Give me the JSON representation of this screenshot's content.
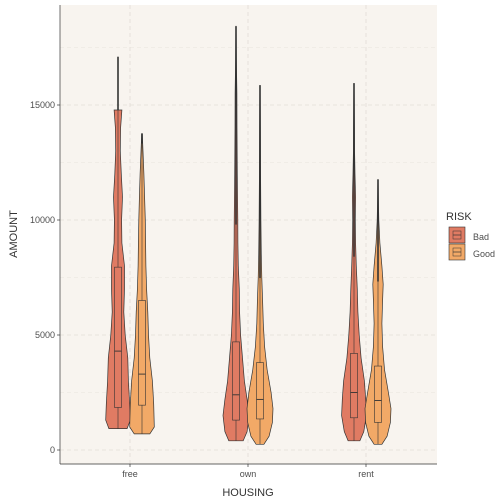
{
  "chart_data": {
    "type": "violin",
    "title": "",
    "xlabel": "HOUSING",
    "ylabel": "AMOUNT",
    "categories": [
      "free",
      "own",
      "rent"
    ],
    "ylim": [
      -500,
      19000
    ],
    "yticks": [
      0,
      5000,
      10000,
      15000
    ],
    "ytick_labels": [
      "0",
      "5000",
      "10000",
      "15000"
    ],
    "grid": true,
    "legend": {
      "title": "RISK",
      "position": "right",
      "entries": [
        "Bad",
        "Good"
      ]
    },
    "colors": {
      "Bad": "#e07b63",
      "Good": "#f2a967",
      "panel": "#f8f4ef",
      "grid": "#e2ddd6",
      "outline": "#333333"
    },
    "series": [
      {
        "name": "Bad",
        "groups": [
          {
            "category": "free",
            "min": 932,
            "max": 14782,
            "q1": 1850,
            "median": 4300,
            "q3": 7950,
            "profile": [
              [
                932,
                0.7
              ],
              [
                1300,
                0.95
              ],
              [
                2000,
                0.9
              ],
              [
                3000,
                0.8
              ],
              [
                4000,
                0.75
              ],
              [
                5000,
                0.55
              ],
              [
                6000,
                0.45
              ],
              [
                7000,
                0.5
              ],
              [
                8000,
                0.5
              ],
              [
                9000,
                0.3
              ],
              [
                10000,
                0.28
              ],
              [
                11000,
                0.35
              ],
              [
                12000,
                0.25
              ],
              [
                13000,
                0.18
              ],
              [
                14000,
                0.2
              ],
              [
                14782,
                0.3
              ]
            ]
          },
          {
            "category": "own",
            "min": 400,
            "max": 18424,
            "q1": 1300,
            "median": 2400,
            "q3": 4700,
            "profile": [
              [
                400,
                0.55
              ],
              [
                800,
                0.85
              ],
              [
                1500,
                1.0
              ],
              [
                2200,
                0.85
              ],
              [
                3000,
                0.65
              ],
              [
                4000,
                0.5
              ],
              [
                5000,
                0.35
              ],
              [
                6000,
                0.28
              ],
              [
                7000,
                0.25
              ],
              [
                8000,
                0.18
              ],
              [
                9000,
                0.15
              ],
              [
                10000,
                0.14
              ],
              [
                12000,
                0.1
              ],
              [
                14000,
                0.08
              ],
              [
                15500,
                0.07
              ],
              [
                17000,
                0.03
              ],
              [
                18424,
                0.01
              ]
            ]
          },
          {
            "category": "rent",
            "min": 400,
            "max": 15945,
            "q1": 1400,
            "median": 2500,
            "q3": 4200,
            "profile": [
              [
                400,
                0.45
              ],
              [
                800,
                0.75
              ],
              [
                1500,
                0.95
              ],
              [
                2200,
                0.9
              ],
              [
                3000,
                0.8
              ],
              [
                4000,
                0.55
              ],
              [
                5000,
                0.4
              ],
              [
                6000,
                0.3
              ],
              [
                7000,
                0.25
              ],
              [
                8000,
                0.18
              ],
              [
                9000,
                0.12
              ],
              [
                10000,
                0.1
              ],
              [
                11000,
                0.12
              ],
              [
                12000,
                0.08
              ],
              [
                13000,
                0.05
              ],
              [
                14000,
                0.04
              ],
              [
                15945,
                0.01
              ]
            ]
          }
        ]
      },
      {
        "name": "Good",
        "groups": [
          {
            "category": "free",
            "min": 700,
            "max": 13756,
            "q1": 1950,
            "median": 3300,
            "q3": 6500,
            "profile": [
              [
                700,
                0.6
              ],
              [
                1000,
                0.95
              ],
              [
                2000,
                0.9
              ],
              [
                3000,
                0.8
              ],
              [
                4000,
                0.6
              ],
              [
                5000,
                0.5
              ],
              [
                6000,
                0.45
              ],
              [
                7000,
                0.35
              ],
              [
                8000,
                0.3
              ],
              [
                9000,
                0.28
              ],
              [
                10000,
                0.25
              ],
              [
                11000,
                0.2
              ],
              [
                12000,
                0.15
              ],
              [
                13000,
                0.08
              ],
              [
                13756,
                0.02
              ]
            ]
          },
          {
            "category": "own",
            "min": 250,
            "max": 15857,
            "q1": 1350,
            "median": 2200,
            "q3": 3800,
            "profile": [
              [
                250,
                0.3
              ],
              [
                600,
                0.7
              ],
              [
                1200,
                0.95
              ],
              [
                1800,
                1.0
              ],
              [
                2500,
                0.85
              ],
              [
                3500,
                0.55
              ],
              [
                4500,
                0.35
              ],
              [
                5500,
                0.25
              ],
              [
                6500,
                0.2
              ],
              [
                7500,
                0.14
              ],
              [
                8500,
                0.1
              ],
              [
                10000,
                0.07
              ],
              [
                12000,
                0.05
              ],
              [
                14000,
                0.03
              ],
              [
                15857,
                0.01
              ]
            ]
          },
          {
            "category": "rent",
            "min": 250,
            "max": 11760,
            "q1": 1200,
            "median": 2150,
            "q3": 3650,
            "profile": [
              [
                250,
                0.3
              ],
              [
                600,
                0.7
              ],
              [
                1200,
                0.95
              ],
              [
                1800,
                1.0
              ],
              [
                2500,
                0.8
              ],
              [
                3500,
                0.5
              ],
              [
                4500,
                0.35
              ],
              [
                5500,
                0.3
              ],
              [
                6500,
                0.35
              ],
              [
                7200,
                0.4
              ],
              [
                8000,
                0.3
              ],
              [
                9000,
                0.15
              ],
              [
                10000,
                0.06
              ],
              [
                11000,
                0.03
              ],
              [
                11760,
                0.01
              ]
            ]
          }
        ]
      }
    ]
  }
}
